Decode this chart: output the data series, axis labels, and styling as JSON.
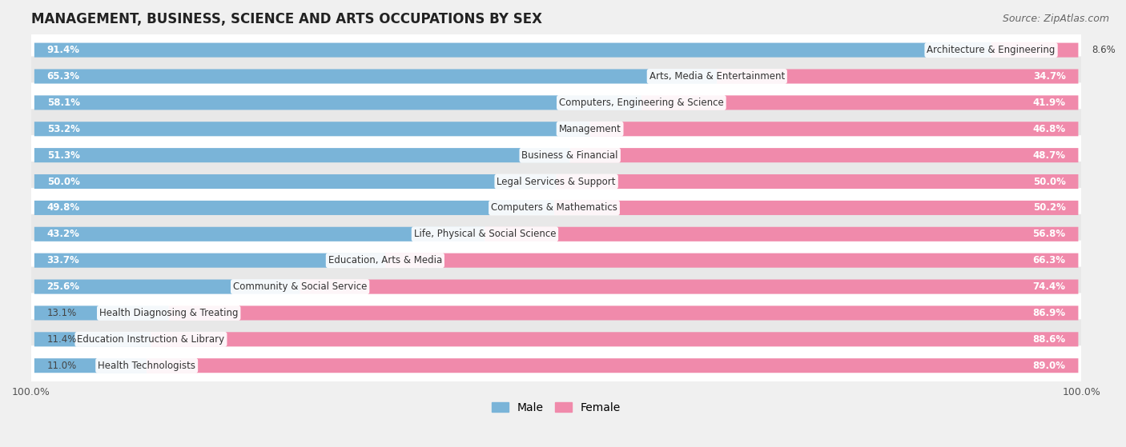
{
  "title": "MANAGEMENT, BUSINESS, SCIENCE AND ARTS OCCUPATIONS BY SEX",
  "source": "Source: ZipAtlas.com",
  "categories": [
    "Architecture & Engineering",
    "Arts, Media & Entertainment",
    "Computers, Engineering & Science",
    "Management",
    "Business & Financial",
    "Legal Services & Support",
    "Computers & Mathematics",
    "Life, Physical & Social Science",
    "Education, Arts & Media",
    "Community & Social Service",
    "Health Diagnosing & Treating",
    "Education Instruction & Library",
    "Health Technologists"
  ],
  "male_pct": [
    91.4,
    65.3,
    58.1,
    53.2,
    51.3,
    50.0,
    49.8,
    43.2,
    33.7,
    25.6,
    13.1,
    11.4,
    11.0
  ],
  "female_pct": [
    8.6,
    34.7,
    41.9,
    46.8,
    48.7,
    50.0,
    50.2,
    56.8,
    66.3,
    74.4,
    86.9,
    88.6,
    89.0
  ],
  "male_color": "#7ab4d8",
  "female_color": "#f08aab",
  "bg_color": "#f0f0f0",
  "row_bg_even": "#ffffff",
  "row_bg_odd": "#e8e8e8",
  "title_fontsize": 12,
  "label_fontsize": 8.5,
  "tick_fontsize": 9,
  "legend_fontsize": 10,
  "male_inside_threshold": 15,
  "female_inside_threshold": 15
}
